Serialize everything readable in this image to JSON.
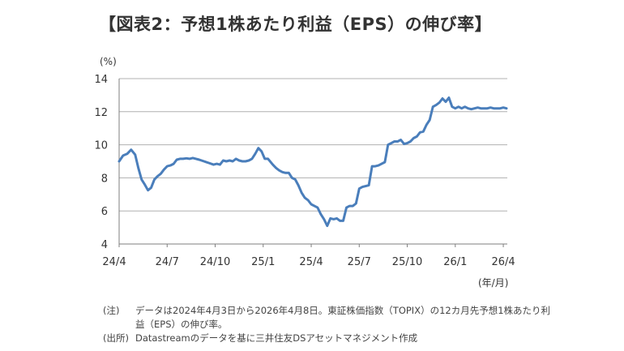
{
  "chart_data": {
    "type": "line",
    "title": "【図表2：予想1株あたり利益（EPS）の伸び率】",
    "ylabel": "(%)",
    "xlabel": "(年/月)",
    "ylim": [
      4,
      14
    ],
    "yticks": [
      4,
      6,
      8,
      10,
      12,
      14
    ],
    "grid": true,
    "x_tick_labels": [
      "24/4",
      "24/7",
      "24/10",
      "25/1",
      "25/4",
      "25/7",
      "25/10",
      "26/1",
      "26/4"
    ],
    "x_range_months": [
      0,
      24.25
    ],
    "series": [
      {
        "name": "予想1株あたり利益（EPS）の伸び率",
        "color": "#4a7ebb",
        "x": [
          0,
          0.25,
          0.5,
          0.75,
          1.0,
          1.2,
          1.4,
          1.6,
          1.8,
          2.0,
          2.2,
          2.4,
          2.6,
          2.8,
          3.0,
          3.2,
          3.4,
          3.6,
          3.8,
          4.0,
          4.2,
          4.4,
          4.6,
          4.8,
          5.0,
          5.3,
          5.6,
          5.9,
          6.1,
          6.3,
          6.5,
          6.7,
          6.9,
          7.1,
          7.3,
          7.5,
          7.7,
          7.9,
          8.1,
          8.3,
          8.5,
          8.7,
          8.9,
          9.1,
          9.3,
          9.6,
          9.8,
          10.0,
          10.2,
          10.4,
          10.6,
          10.8,
          11.0,
          11.2,
          11.4,
          11.6,
          11.8,
          12.0,
          12.2,
          12.4,
          12.6,
          12.8,
          13.0,
          13.2,
          13.4,
          13.6,
          13.8,
          14.0,
          14.2,
          14.4,
          14.6,
          14.8,
          15.0,
          15.2,
          15.4,
          15.6,
          15.8,
          16.0,
          16.2,
          16.4,
          16.6,
          16.8,
          17.0,
          17.2,
          17.4,
          17.6,
          17.8,
          18.0,
          18.2,
          18.4,
          18.6,
          18.8,
          19.0,
          19.2,
          19.4,
          19.6,
          19.8,
          20.0,
          20.2,
          20.4,
          20.6,
          20.8,
          21.0,
          21.2,
          21.4,
          21.6,
          21.8,
          22.0,
          22.2,
          22.4,
          22.6,
          22.8,
          23.0,
          23.2,
          23.4,
          23.6,
          23.8,
          24.0,
          24.2
        ],
        "values": [
          9.0,
          9.35,
          9.45,
          9.7,
          9.4,
          8.6,
          7.9,
          7.6,
          7.25,
          7.4,
          7.9,
          8.1,
          8.25,
          8.5,
          8.7,
          8.75,
          8.85,
          9.1,
          9.15,
          9.15,
          9.18,
          9.15,
          9.2,
          9.15,
          9.1,
          9.0,
          8.9,
          8.8,
          8.85,
          8.8,
          9.05,
          9.0,
          9.05,
          9.0,
          9.15,
          9.05,
          9.0,
          9.0,
          9.05,
          9.15,
          9.45,
          9.8,
          9.6,
          9.15,
          9.15,
          8.8,
          8.6,
          8.45,
          8.35,
          8.3,
          8.3,
          8.0,
          7.9,
          7.55,
          7.1,
          6.8,
          6.65,
          6.4,
          6.3,
          6.2,
          5.8,
          5.5,
          5.1,
          5.55,
          5.5,
          5.55,
          5.4,
          5.4,
          6.2,
          6.3,
          6.3,
          6.45,
          7.35,
          7.45,
          7.5,
          7.55,
          8.7,
          8.7,
          8.75,
          8.85,
          8.95,
          10.0,
          10.1,
          10.2,
          10.2,
          10.3,
          10.05,
          10.1,
          10.2,
          10.4,
          10.5,
          10.75,
          10.8,
          11.2,
          11.5,
          12.3,
          12.4,
          12.55,
          12.8,
          12.6,
          12.85,
          12.3,
          12.2,
          12.3,
          12.2,
          12.3,
          12.2,
          12.15,
          12.2,
          12.25,
          12.2,
          12.2,
          12.2,
          12.25,
          12.2,
          12.2,
          12.2,
          12.25,
          12.2
        ]
      }
    ]
  },
  "notes": [
    {
      "key": "(注)",
      "text": "データは2024年4月3日から2026年4月8日。東証株価指数（TOPIX）の12カ月先予想1株あたり利益（EPS）の伸び率。"
    },
    {
      "key": "(出所)",
      "text": "Datastreamのデータを基に三井住友DSアセットマネジメント作成"
    }
  ]
}
